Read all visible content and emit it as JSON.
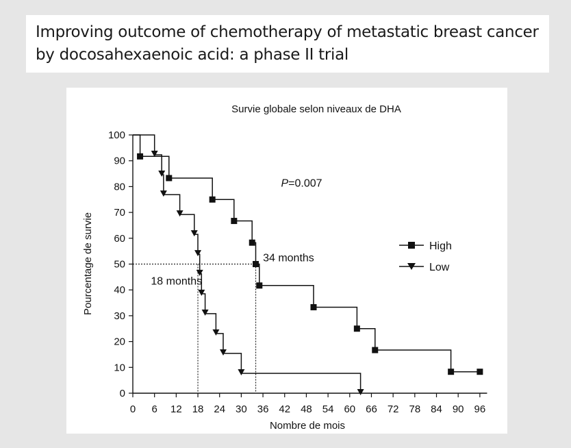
{
  "paper": {
    "title_line1": "Improving outcome of chemotherapy of metastatic breast cancer",
    "title_line2": "by docosahexaenoic acid: a phase II trial"
  },
  "chart_data": {
    "type": "line",
    "subtype": "kaplan-meier",
    "title": "Survie globale selon niveaux de DHA",
    "xlabel": "Nombre de mois",
    "ylabel": "Pourcentage de survie",
    "xlim": [
      0,
      98
    ],
    "ylim": [
      0,
      100
    ],
    "xticks": [
      0,
      6,
      12,
      18,
      24,
      30,
      36,
      42,
      48,
      54,
      60,
      66,
      72,
      78,
      84,
      90,
      96
    ],
    "yticks": [
      0,
      10,
      20,
      30,
      40,
      50,
      60,
      70,
      80,
      90,
      100
    ],
    "grid": false,
    "legend_position": "right",
    "series": [
      {
        "name": "High",
        "marker": "square",
        "step": [
          [
            0,
            100
          ],
          [
            2,
            100
          ],
          [
            2,
            91.7
          ],
          [
            10,
            91.7
          ],
          [
            10,
            83.3
          ],
          [
            22,
            83.3
          ],
          [
            22,
            75
          ],
          [
            28,
            75
          ],
          [
            28,
            66.7
          ],
          [
            33,
            66.7
          ],
          [
            33,
            58.3
          ],
          [
            34,
            58.3
          ],
          [
            34,
            50
          ],
          [
            35,
            50
          ],
          [
            35,
            41.7
          ],
          [
            50,
            41.7
          ],
          [
            50,
            33.3
          ],
          [
            62,
            33.3
          ],
          [
            62,
            25
          ],
          [
            67,
            25
          ],
          [
            67,
            16.7
          ],
          [
            88,
            16.7
          ],
          [
            88,
            8.3
          ],
          [
            96,
            8.3
          ]
        ],
        "markers": [
          [
            2,
            91.7
          ],
          [
            10,
            83.3
          ],
          [
            22,
            75
          ],
          [
            28,
            66.7
          ],
          [
            33,
            58.3
          ],
          [
            34,
            50
          ],
          [
            35,
            41.7
          ],
          [
            50,
            33.3
          ],
          [
            62,
            25
          ],
          [
            67,
            16.7
          ],
          [
            88,
            8.3
          ],
          [
            96,
            8.3
          ]
        ]
      },
      {
        "name": "Low",
        "marker": "triangle-down",
        "step": [
          [
            0,
            100
          ],
          [
            6,
            100
          ],
          [
            6,
            92.3
          ],
          [
            8,
            92.3
          ],
          [
            8,
            84.6
          ],
          [
            8.5,
            84.6
          ],
          [
            8.5,
            76.9
          ],
          [
            13,
            76.9
          ],
          [
            13,
            69.2
          ],
          [
            17,
            69.2
          ],
          [
            17,
            61.5
          ],
          [
            18,
            61.5
          ],
          [
            18,
            53.8
          ],
          [
            18.5,
            53.8
          ],
          [
            18.5,
            46.2
          ],
          [
            19,
            46.2
          ],
          [
            19,
            38.5
          ],
          [
            20,
            38.5
          ],
          [
            20,
            30.8
          ],
          [
            23,
            30.8
          ],
          [
            23,
            23.1
          ],
          [
            25,
            23.1
          ],
          [
            25,
            15.4
          ],
          [
            30,
            15.4
          ],
          [
            30,
            7.7
          ],
          [
            63,
            7.7
          ],
          [
            63,
            0
          ]
        ],
        "markers": [
          [
            6,
            92.3
          ],
          [
            8,
            84.6
          ],
          [
            8.5,
            76.9
          ],
          [
            13,
            69.2
          ],
          [
            17,
            61.5
          ],
          [
            18,
            53.8
          ],
          [
            18.5,
            46.2
          ],
          [
            19,
            38.5
          ],
          [
            20,
            30.8
          ],
          [
            23,
            23.1
          ],
          [
            25,
            15.4
          ],
          [
            30,
            7.7
          ],
          [
            63,
            0
          ]
        ]
      }
    ],
    "annotations": [
      {
        "text": "P=0.007",
        "x": 41,
        "y": 80
      },
      {
        "text": "34 months",
        "x": 36,
        "y": 51
      },
      {
        "text": "18 months",
        "x": 5,
        "y": 42
      }
    ],
    "median_lines": [
      {
        "x": 34,
        "y": 50
      },
      {
        "x": 18,
        "y": 50
      }
    ]
  }
}
